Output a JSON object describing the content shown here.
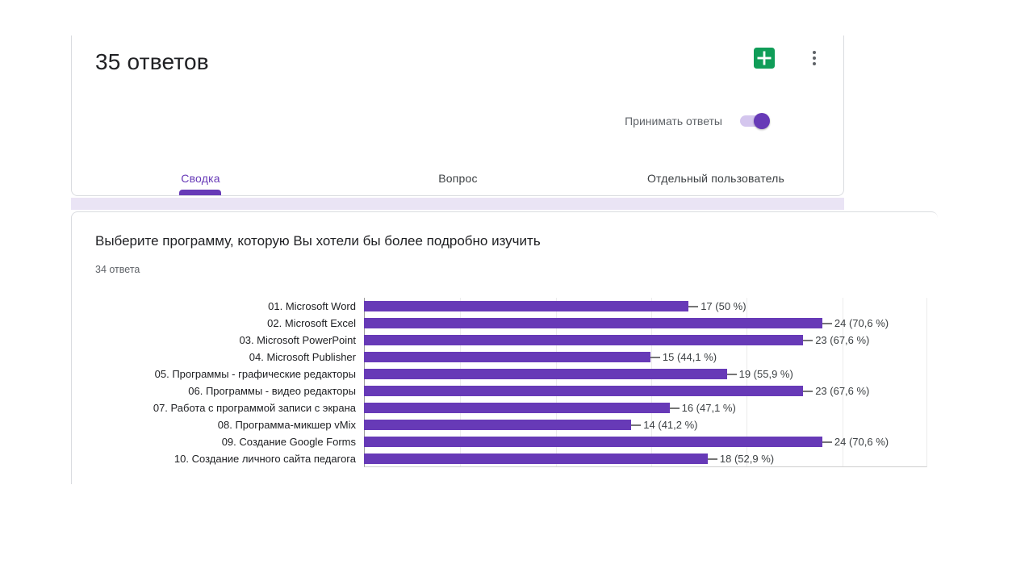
{
  "header": {
    "title": "35 ответов",
    "accepting_responses_label": "Принимать ответы",
    "accepting_responses_on": true,
    "icons": {
      "create_spreadsheet": "sheets-create-spreadsheet-icon",
      "more": "three-dot-menu-icon"
    }
  },
  "tabs": [
    {
      "label": "Сводка",
      "active": true
    },
    {
      "label": "Вопрос",
      "active": false
    },
    {
      "label": "Отдельный пользователь",
      "active": false
    }
  ],
  "question": {
    "title": "Выберите программу, которую Вы хотели бы более подробно изучить",
    "responses": "34 ответа"
  },
  "colors": {
    "accent_purple": "#673ab7",
    "toggle_track": "#d4c6ee",
    "sheets_green": "#109d58",
    "card_border": "#dadce0",
    "between_cards_bg": "#eae4f5"
  },
  "chart_data": {
    "type": "bar",
    "orientation": "horizontal",
    "title": "",
    "legend": "none",
    "grid": true,
    "axis_number_labels_visible": false,
    "xlim": [
      0,
      29.5
    ],
    "grid_step": 5,
    "bar_color": "#673ab7",
    "total_responses": 34,
    "categories": [
      "01. Microsoft Word",
      "02. Microsoft Excel",
      "03. Microsoft PowerPoint",
      "04. Microsoft Publisher",
      "05. Программы - графические редакторы",
      "06. Программы - видео редакторы",
      "07. Работа с программой записи с экрана",
      "08. Программа-микшер vMix",
      "09. Создание Google Forms",
      "10. Создание личного сайта педагога"
    ],
    "values": [
      17,
      24,
      23,
      15,
      19,
      23,
      16,
      14,
      24,
      18
    ],
    "value_labels": [
      "17 (50 %)",
      "24 (70,6 %)",
      "23 (67,6 %)",
      "15 (44,1 %)",
      "19 (55,9 %)",
      "23 (67,6 %)",
      "16 (47,1 %)",
      "14 (41,2 %)",
      "24 (70,6 %)",
      "18 (52,9 %)"
    ]
  }
}
